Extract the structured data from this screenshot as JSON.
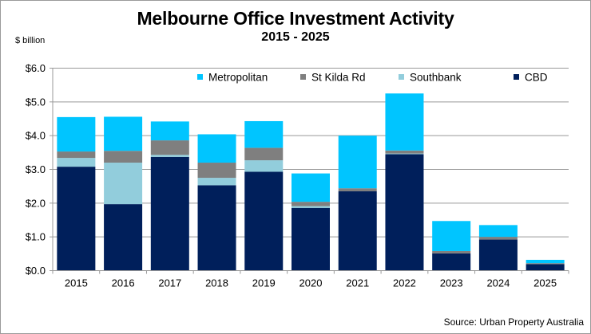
{
  "chart_data": {
    "type": "bar",
    "stacked": true,
    "title": "Melbourne Office Investment Activity",
    "subtitle": "2015 - 2025",
    "ylabel": "$ billion",
    "xlabel": "",
    "source": "Source: Urban Property Australia",
    "ylim": [
      0,
      6
    ],
    "yticks": [
      0,
      1,
      2,
      3,
      4,
      5,
      6
    ],
    "ytick_labels": [
      "$0.0",
      "$1.0",
      "$2.0",
      "$3.0",
      "$4.0",
      "$5.0",
      "$6.0"
    ],
    "grid": true,
    "legend_position": "top",
    "categories": [
      "2015",
      "2016",
      "2017",
      "2018",
      "2019",
      "2020",
      "2021",
      "2022",
      "2023",
      "2024",
      "2025"
    ],
    "series": [
      {
        "name": "CBD",
        "color": "#001f5b",
        "values": [
          3.08,
          1.97,
          3.37,
          2.53,
          2.93,
          1.86,
          2.35,
          3.45,
          0.51,
          0.92,
          0.19
        ]
      },
      {
        "name": "Southbank",
        "color": "#92cddc",
        "values": [
          0.26,
          1.23,
          0.06,
          0.22,
          0.34,
          0.05,
          0.0,
          0.02,
          0.0,
          0.0,
          0.0
        ]
      },
      {
        "name": "St Kilda Rd",
        "color": "#7f7f7f",
        "values": [
          0.19,
          0.35,
          0.43,
          0.45,
          0.37,
          0.13,
          0.09,
          0.09,
          0.07,
          0.08,
          0.03
        ]
      },
      {
        "name": "Metropolitan",
        "color": "#00c5ff",
        "values": [
          1.02,
          1.01,
          0.56,
          0.84,
          0.79,
          0.84,
          1.56,
          1.69,
          0.89,
          0.35,
          0.1
        ]
      }
    ],
    "legend_order": [
      "Metropolitan",
      "St Kilda Rd",
      "Southbank",
      "CBD"
    ]
  }
}
